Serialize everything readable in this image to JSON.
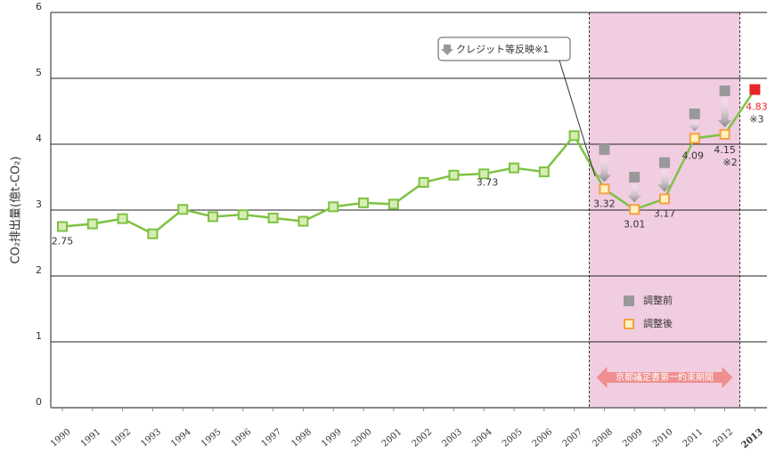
{
  "chart_data": {
    "type": "line",
    "y_label": "CO₂排出量(億t-CO₂)",
    "categories": [
      "1990",
      "1991",
      "1992",
      "1993",
      "1994",
      "1995",
      "1996",
      "1997",
      "1998",
      "1999",
      "2000",
      "2001",
      "2002",
      "2003",
      "2004",
      "2005",
      "2006",
      "2007",
      "2008",
      "2009",
      "2010",
      "2011",
      "2012",
      "2013"
    ],
    "series": [
      {
        "name": "調整後",
        "color": "#7dc242",
        "legend_color": "#f5a043",
        "values": [
          2.75,
          2.79,
          2.87,
          2.64,
          3.01,
          2.9,
          2.93,
          2.88,
          2.83,
          3.05,
          3.11,
          3.09,
          3.42,
          3.53,
          3.55,
          3.64,
          3.58,
          4.13,
          3.32,
          3.01,
          3.17,
          4.09,
          4.15,
          4.83
        ],
        "marker_colors": [
          "#7dc242",
          "#7dc242",
          "#7dc242",
          "#7dc242",
          "#7dc242",
          "#7dc242",
          "#7dc242",
          "#7dc242",
          "#7dc242",
          "#7dc242",
          "#7dc242",
          "#7dc242",
          "#7dc242",
          "#7dc242",
          "#7dc242",
          "#7dc242",
          "#7dc242",
          "#7dc242",
          "#f5a043",
          "#f5a043",
          "#f5a043",
          "#f5a043",
          "#f5a043",
          "#e8262a"
        ],
        "value_labels": [
          "2.75",
          null,
          null,
          null,
          null,
          null,
          null,
          null,
          null,
          null,
          null,
          null,
          null,
          null,
          null,
          null,
          null,
          null,
          "3.32",
          "3.01",
          "3.17",
          "4.09",
          "4.15",
          "4.83"
        ]
      },
      {
        "name": "調整前",
        "color": "#999999",
        "values": [
          null,
          null,
          null,
          null,
          null,
          null,
          null,
          null,
          null,
          null,
          null,
          null,
          null,
          null,
          null,
          null,
          null,
          null,
          3.92,
          3.5,
          3.72,
          4.46,
          4.81,
          null
        ]
      }
    ],
    "annotations": [
      "3.73",
      "※2",
      "※3"
    ],
    "callout": "クレジット等反映※1",
    "period_label": "京都議定書第一約束期間",
    "ylim": [
      0,
      6
    ],
    "yticks": [
      0,
      1,
      2,
      3,
      4,
      5,
      6
    ],
    "grid": true
  }
}
